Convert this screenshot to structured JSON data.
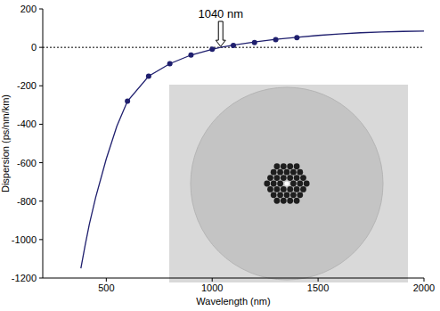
{
  "chart_data": {
    "type": "line",
    "x_label": "Wavelength (nm)",
    "y_label": "Dispersion (ps/nm/km)",
    "series": [
      {
        "type": "line",
        "color": "#1f1f6e",
        "line_style": "solid",
        "marker": "none",
        "x": [
          380,
          400,
          420,
          450,
          500,
          550,
          600,
          700,
          800,
          900,
          1000,
          1040,
          1100,
          1200,
          1300,
          1400,
          1500,
          1600,
          1700,
          1800,
          1900,
          2000
        ],
        "values": [
          -1150,
          -1030,
          -920,
          -780,
          -580,
          -410,
          -280,
          -150,
          -85,
          -40,
          -10,
          0,
          12,
          28,
          42,
          52,
          62,
          70,
          76,
          80,
          83,
          85
        ]
      },
      {
        "type": "scatter",
        "color": "#1f1f6e",
        "marker": "circle",
        "x": [
          600,
          700,
          800,
          900,
          1000,
          1100,
          1200,
          1300,
          1400
        ],
        "values": [
          -280,
          -150,
          -85,
          -40,
          -10,
          10,
          25,
          40,
          50
        ]
      }
    ],
    "annotation": {
      "text": "1040 nm",
      "x": 1040,
      "y": 0
    },
    "xlim": [
      200,
      2000
    ],
    "xticks": [
      500,
      1000,
      1500,
      2000
    ],
    "ylim": [
      -1200,
      200
    ],
    "yticks": [
      -1200,
      -1000,
      -800,
      -600,
      -400,
      -200,
      0,
      200
    ],
    "grid": false
  }
}
